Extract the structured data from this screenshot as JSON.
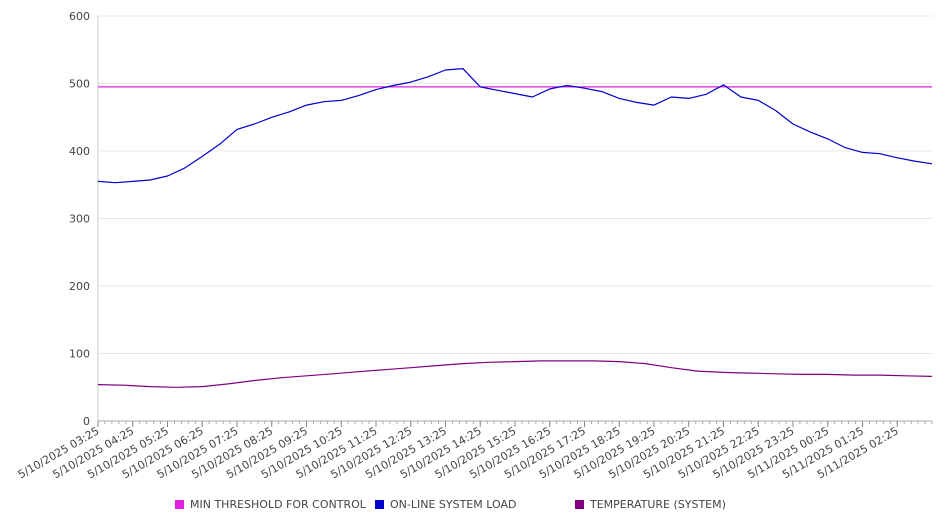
{
  "chart_data": {
    "type": "line",
    "title": "",
    "xlabel": "",
    "ylabel": "",
    "ylim": [
      0,
      600
    ],
    "yticks": [
      0,
      100,
      200,
      300,
      400,
      500,
      600
    ],
    "grid": true,
    "legend_position": "bottom",
    "x_tick_labels": [
      "5/10/2025 03:25",
      "5/10/2025 04:25",
      "5/10/2025 05:25",
      "5/10/2025 06:25",
      "5/10/2025 07:25",
      "5/10/2025 08:25",
      "5/10/2025 09:25",
      "5/10/2025 10:25",
      "5/10/2025 11:25",
      "5/10/2025 12:25",
      "5/10/2025 13:25",
      "5/10/2025 14:25",
      "5/10/2025 15:25",
      "5/10/2025 16:25",
      "5/10/2025 17:25",
      "5/10/2025 18:25",
      "5/10/2025 19:25",
      "5/10/2025 20:25",
      "5/10/2025 21:25",
      "5/10/2025 22:25",
      "5/10/2025 23:25",
      "5/11/2025 00:25",
      "5/11/2025 01:25",
      "5/11/2025 02:25"
    ],
    "series": [
      {
        "name": "MIN THRESHOLD FOR CONTROL",
        "color": "#e020e0",
        "values": [
          495,
          495
        ]
      },
      {
        "name": "ON-LINE SYSTEM LOAD",
        "color": "#0000cc",
        "values": [
          355,
          353,
          355,
          357,
          363,
          375,
          392,
          410,
          432,
          440,
          450,
          458,
          468,
          473,
          475,
          482,
          491,
          497,
          502,
          510,
          520,
          522,
          495,
          490,
          485,
          480,
          492,
          497,
          493,
          488,
          478,
          472,
          468,
          480,
          478,
          484,
          498,
          480,
          475,
          460,
          440,
          428,
          418,
          405,
          398,
          396,
          390,
          385,
          381
        ]
      },
      {
        "name": "TEMPERATURE (SYSTEM)",
        "color": "#800080",
        "values": [
          54,
          53,
          51,
          50,
          51,
          55,
          60,
          64,
          67,
          70,
          73,
          76,
          79,
          82,
          85,
          87,
          88,
          89,
          89,
          89,
          88,
          85,
          79,
          74,
          72,
          71,
          70,
          69,
          69,
          68,
          68,
          67,
          66
        ]
      }
    ]
  }
}
